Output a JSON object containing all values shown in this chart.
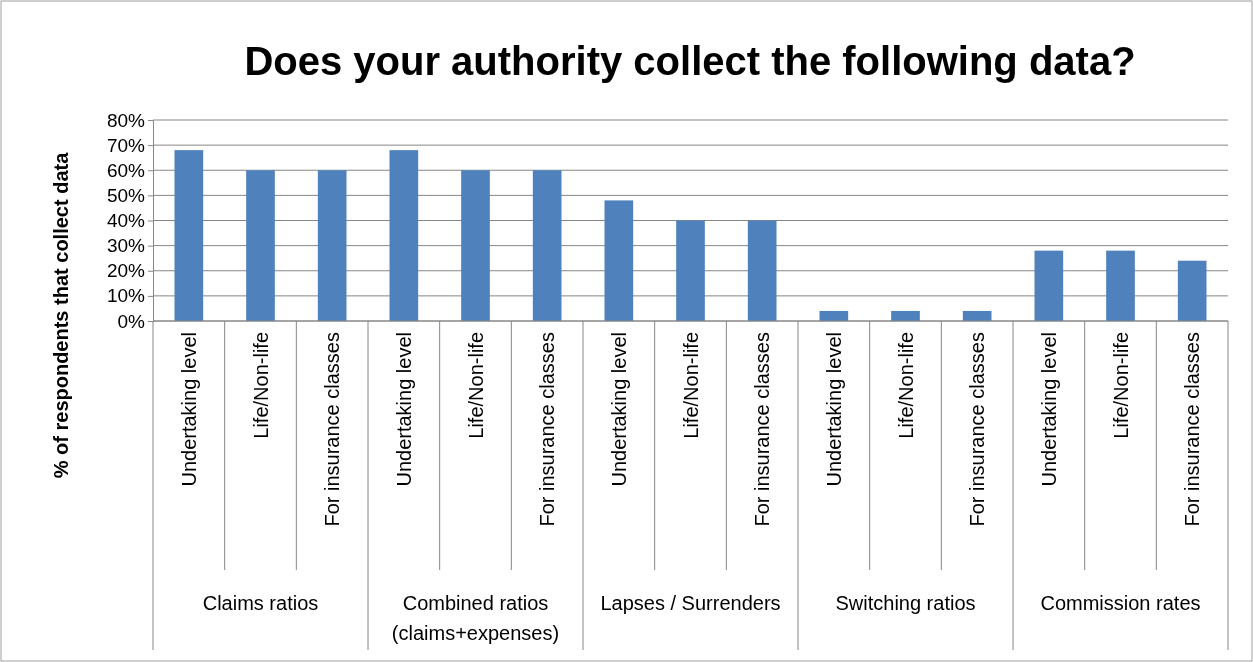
{
  "chart_data": {
    "type": "bar",
    "title": "Does your authority collect the following data?",
    "ylabel": "% of respondents that collect data",
    "categories": [
      "Undertaking level",
      "Life/Non-life",
      "For insurance classes",
      "Undertaking level",
      "Life/Non-life",
      "For insurance classes",
      "Undertaking level",
      "Life/Non-life",
      "For insurance classes",
      "Undertaking level",
      "Life/Non-life",
      "For insurance classes",
      "Undertaking level",
      "Life/Non-life",
      "For insurance classes"
    ],
    "values": [
      68,
      60,
      60,
      68,
      60,
      60,
      48,
      40,
      40,
      4,
      4,
      4,
      28,
      28,
      24
    ],
    "color": "#4f81bd",
    "ylim": [
      0,
      80
    ],
    "yticks": [
      {
        "value": 0,
        "label": "0%"
      },
      {
        "value": 10,
        "label": "10%"
      },
      {
        "value": 20,
        "label": "20%"
      },
      {
        "value": 30,
        "label": "30%"
      },
      {
        "value": 40,
        "label": "40%"
      },
      {
        "value": 50,
        "label": "50%"
      },
      {
        "value": 60,
        "label": "60%"
      },
      {
        "value": 70,
        "label": "70%"
      },
      {
        "value": 80,
        "label": "80%"
      }
    ],
    "grid": "y",
    "annotations": [
      "Claims ratios",
      "Combined ratios (claims+expenses)",
      "Lapses / Surrenders",
      "Switching ratios",
      "Commission rates"
    ]
  }
}
